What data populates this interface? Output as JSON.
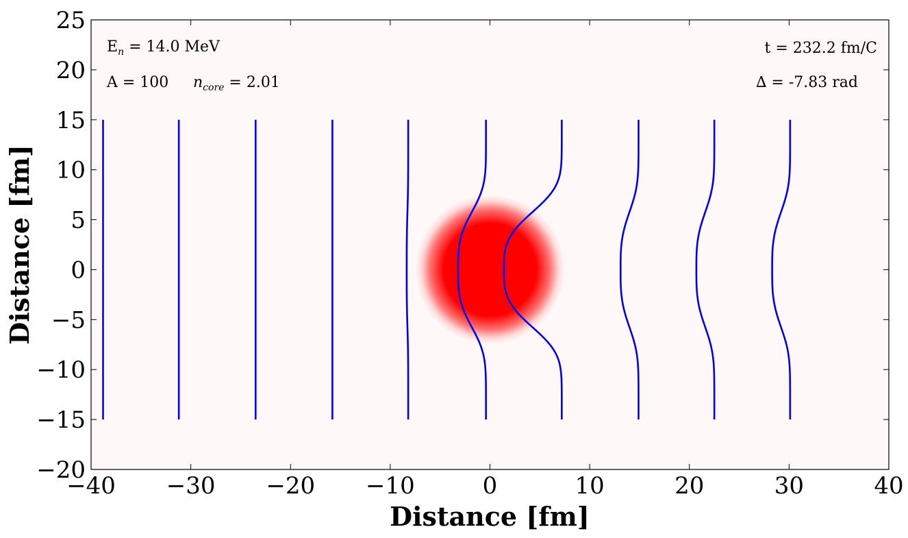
{
  "chart_data": {
    "type": "line",
    "xlabel": "Distance [fm]",
    "ylabel": "Distance [fm]",
    "xlim": [
      -40,
      40
    ],
    "ylim": [
      -20,
      25
    ],
    "xticks": [
      "−40",
      "−30",
      "−20",
      "−10",
      "0",
      "10",
      "20",
      "30",
      "40"
    ],
    "yticks": [
      "−20",
      "−15",
      "−10",
      "−5",
      "0",
      "5",
      "10",
      "15",
      "20",
      "25"
    ],
    "xtick_values": [
      -40,
      -30,
      -20,
      -10,
      0,
      10,
      20,
      30,
      40
    ],
    "ytick_values": [
      -20,
      -15,
      -10,
      -5,
      0,
      5,
      10,
      15,
      20,
      25
    ],
    "grid": false,
    "background_color": "#fff8f8",
    "wavefront_color": "#0000ee",
    "nucleus": {
      "center": [
        0,
        0
      ],
      "radius": 6.0,
      "color": "#ff0000"
    },
    "wavefronts": {
      "y_range": [
        -15,
        15
      ],
      "series": [
        {
          "x0": -38.8,
          "bend": 0.0
        },
        {
          "x0": -31.2,
          "bend": 0.0
        },
        {
          "x0": -23.5,
          "bend": 0.0
        },
        {
          "x0": -15.8,
          "bend": 0.0
        },
        {
          "x0": -8.2,
          "bend": 0.15
        },
        {
          "x0": -0.4,
          "bend": 2.8
        },
        {
          "x0": 7.2,
          "bend": 5.8
        },
        {
          "x0": 14.9,
          "bend": 1.8
        },
        {
          "x0": 22.5,
          "bend": 1.8
        },
        {
          "x0": 30.1,
          "bend": 1.8
        }
      ]
    },
    "annotations": {
      "energy": {
        "prefix": "E",
        "sub": "n",
        "text": " = 14.0 MeV"
      },
      "mass": "A = 100",
      "core": {
        "symbol": "n",
        "sub": "core",
        "text": " = 2.01"
      },
      "time": "t = 232.2 fm/C",
      "phase": "∆ = -7.83 rad"
    }
  }
}
